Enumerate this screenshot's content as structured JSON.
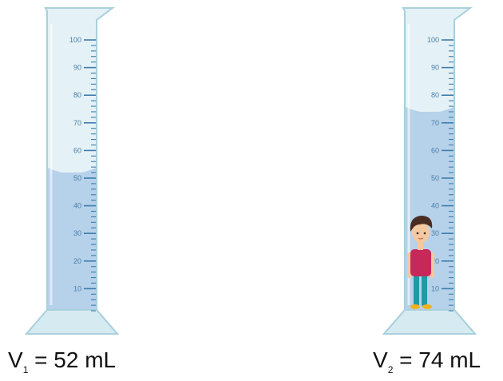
{
  "colors": {
    "glass_fill": "#e4f1f6",
    "glass_stroke": "#a9d0dd",
    "liquid": "#b6d1ea",
    "tick": "#3f7dae",
    "label": "#4a7fa8",
    "skin": "#f4c8a0",
    "hair": "#4a2d22",
    "shirt": "#c6285a",
    "pants": "#1f9aa6",
    "shoes": "#f0b21b"
  },
  "scale": {
    "min": 0,
    "max": 100,
    "labels": [
      "10",
      "20",
      "30",
      "40",
      "50",
      "60",
      "70",
      "80",
      "90",
      "100"
    ]
  },
  "cylinders": [
    {
      "id": "left",
      "level_mL": 52,
      "has_figure": false,
      "caption": {
        "main": "V",
        "sub": "1",
        "rest": " = 52 mL"
      }
    },
    {
      "id": "right",
      "level_mL": 74,
      "has_figure": true,
      "caption": {
        "main": "V",
        "sub": "2",
        "rest": " = 74 mL"
      }
    }
  ]
}
